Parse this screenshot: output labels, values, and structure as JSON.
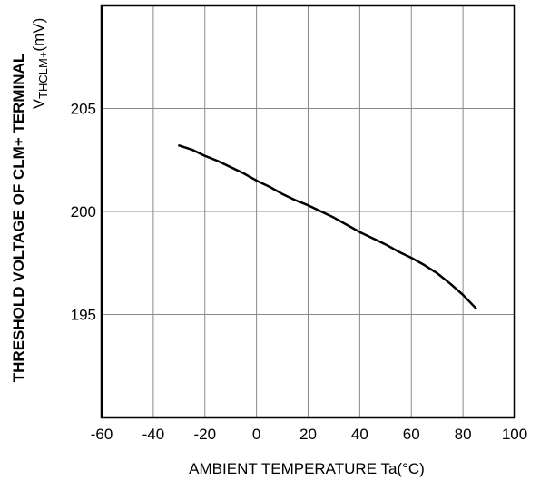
{
  "chart_data": {
    "type": "line",
    "title": "",
    "xlabel": "AMBIENT TEMPERATURE Ta(°C)",
    "ylabel_line1": "THRESHOLD VOLTAGE OF CLM+ TERMINAL",
    "ylabel_line2_prefix": "V",
    "ylabel_line2_sub": "THCLM+",
    "ylabel_line2_suffix": "(mV)",
    "xlim": [
      -60,
      100
    ],
    "ylim": [
      190,
      210
    ],
    "x_ticks": [
      -60,
      -40,
      -20,
      0,
      20,
      40,
      60,
      80,
      100
    ],
    "y_ticks": [
      195,
      200,
      205
    ],
    "grid": true,
    "series": [
      {
        "x": [
          -30,
          -25,
          -20,
          -15,
          -10,
          -5,
          0,
          5,
          10,
          15,
          20,
          25,
          30,
          35,
          40,
          45,
          50,
          55,
          60,
          65,
          70,
          75,
          80,
          85
        ],
        "y": [
          203.2,
          203.0,
          202.7,
          202.45,
          202.15,
          201.85,
          201.5,
          201.2,
          200.85,
          200.55,
          200.3,
          200.0,
          199.7,
          199.35,
          199.0,
          198.7,
          198.4,
          198.05,
          197.75,
          197.4,
          197.0,
          196.5,
          195.95,
          195.3
        ]
      }
    ]
  }
}
